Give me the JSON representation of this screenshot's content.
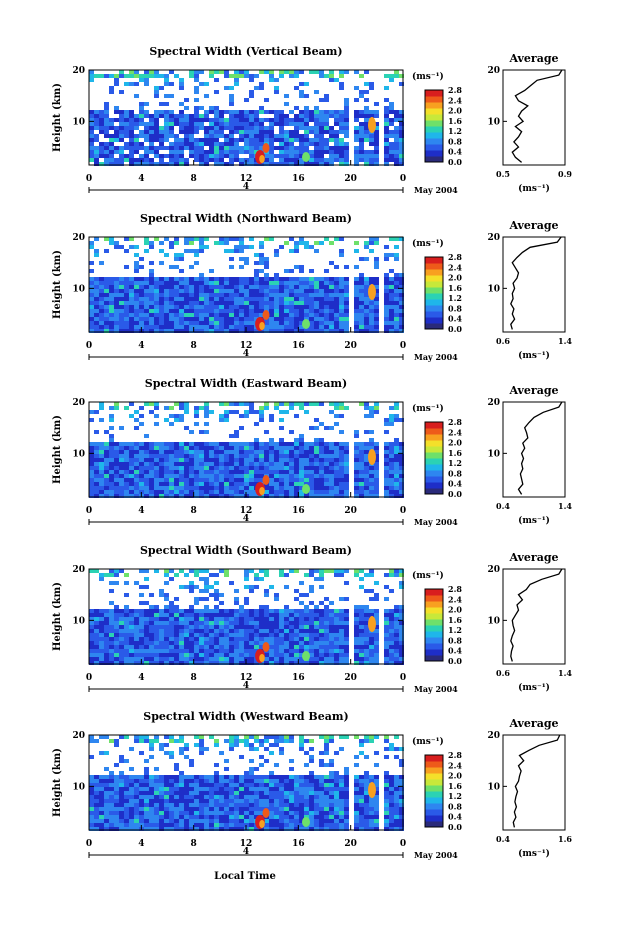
{
  "figure": {
    "xlabel": "Local Time",
    "date_label": "May 2004",
    "day_label": "4",
    "colorbar_unit": "(ms⁻¹)",
    "colorbar_ticks": [
      "0.0",
      "0.4",
      "0.8",
      "1.2",
      "1.6",
      "2.0",
      "2.4",
      "2.8"
    ],
    "colors": {
      "colormap": [
        "#2a2a7a",
        "#1e2ec8",
        "#2a5ae8",
        "#2e86f0",
        "#1fb6ea",
        "#2bd2b4",
        "#6ee06a",
        "#c8e83a",
        "#f4e02a",
        "#f8a020",
        "#ee5a1a",
        "#d81e1e"
      ],
      "accent": "#000000"
    }
  },
  "chart_data": [
    {
      "type": "heatmap",
      "title": "Spectral Width (Vertical Beam)",
      "ylabel": "Height (km)",
      "x_ticks": [
        "0",
        "4",
        "8",
        "12",
        "16",
        "20",
        "0"
      ],
      "y_ticks": [
        "10",
        "20"
      ],
      "xlim": [
        0,
        24
      ],
      "ylim": [
        1.5,
        20
      ],
      "average": {
        "title": "Average",
        "xlabel": "(ms⁻¹)",
        "x_ticks": [
          "0.5",
          "0.9"
        ],
        "xlim": [
          0.5,
          0.9
        ],
        "heights": [
          2,
          3,
          4,
          5,
          6,
          7,
          8,
          9,
          10,
          11,
          12,
          13,
          14,
          15,
          16,
          17,
          18,
          19,
          20
        ],
        "values": [
          0.62,
          0.58,
          0.56,
          0.6,
          0.57,
          0.6,
          0.62,
          0.58,
          0.63,
          0.6,
          0.62,
          0.66,
          0.6,
          0.58,
          0.64,
          0.68,
          0.72,
          0.86,
          0.88
        ]
      }
    },
    {
      "type": "heatmap",
      "title": "Spectral Width (Northward Beam)",
      "ylabel": "Height (km)",
      "x_ticks": [
        "0",
        "4",
        "8",
        "12",
        "16",
        "20",
        "0"
      ],
      "y_ticks": [
        "10",
        "20"
      ],
      "xlim": [
        0,
        24
      ],
      "ylim": [
        1.5,
        20
      ],
      "average": {
        "title": "Average",
        "xlabel": "(ms⁻¹)",
        "x_ticks": [
          "0.6",
          "1.4"
        ],
        "xlim": [
          0.6,
          1.4
        ],
        "heights": [
          2,
          3,
          4,
          5,
          6,
          7,
          8,
          9,
          10,
          11,
          12,
          13,
          14,
          15,
          16,
          17,
          18,
          19,
          20
        ],
        "values": [
          0.72,
          0.7,
          0.75,
          0.72,
          0.74,
          0.7,
          0.73,
          0.72,
          0.75,
          0.73,
          0.78,
          0.8,
          0.76,
          0.72,
          0.78,
          0.85,
          0.95,
          1.3,
          1.35
        ]
      }
    },
    {
      "type": "heatmap",
      "title": "Spectral Width (Eastward Beam)",
      "ylabel": "Height (km)",
      "x_ticks": [
        "0",
        "4",
        "8",
        "12",
        "16",
        "20",
        "0"
      ],
      "y_ticks": [
        "10",
        "20"
      ],
      "xlim": [
        0,
        24
      ],
      "ylim": [
        1.5,
        20
      ],
      "average": {
        "title": "Average",
        "xlabel": "(ms⁻¹)",
        "x_ticks": [
          "0.4",
          "1.4"
        ],
        "xlim": [
          0.4,
          1.4
        ],
        "heights": [
          2,
          3,
          4,
          5,
          6,
          7,
          8,
          9,
          10,
          11,
          12,
          13,
          14,
          15,
          16,
          17,
          18,
          19,
          20
        ],
        "values": [
          0.7,
          0.65,
          0.72,
          0.7,
          0.68,
          0.72,
          0.7,
          0.73,
          0.7,
          0.75,
          0.72,
          0.8,
          0.78,
          0.75,
          0.82,
          0.9,
          1.05,
          1.3,
          1.35
        ]
      }
    },
    {
      "type": "heatmap",
      "title": "Spectral Width (Southward Beam)",
      "ylabel": "Height (km)",
      "x_ticks": [
        "0",
        "4",
        "8",
        "12",
        "16",
        "20",
        "0"
      ],
      "y_ticks": [
        "10",
        "20"
      ],
      "xlim": [
        0,
        24
      ],
      "ylim": [
        1.5,
        20
      ],
      "average": {
        "title": "Average",
        "xlabel": "(ms⁻¹)",
        "x_ticks": [
          "0.6",
          "1.4"
        ],
        "xlim": [
          0.6,
          1.4
        ],
        "heights": [
          2,
          3,
          4,
          5,
          6,
          7,
          8,
          9,
          10,
          11,
          12,
          13,
          14,
          15,
          16,
          17,
          18,
          19,
          20
        ],
        "values": [
          0.72,
          0.7,
          0.71,
          0.73,
          0.7,
          0.72,
          0.75,
          0.73,
          0.72,
          0.76,
          0.8,
          0.78,
          0.85,
          0.8,
          0.9,
          0.95,
          1.1,
          1.32,
          1.36
        ]
      }
    },
    {
      "type": "heatmap",
      "title": "Spectral Width (Westward Beam)",
      "ylabel": "Height (km)",
      "x_ticks": [
        "0",
        "4",
        "8",
        "12",
        "16",
        "20",
        "0"
      ],
      "y_ticks": [
        "10",
        "20"
      ],
      "xlim": [
        0,
        24
      ],
      "ylim": [
        1.5,
        20
      ],
      "average": {
        "title": "Average",
        "xlabel": "(ms⁻¹)",
        "x_ticks": [
          "0.4",
          "1.6"
        ],
        "xlim": [
          0.4,
          1.6
        ],
        "heights": [
          2,
          3,
          4,
          5,
          6,
          7,
          8,
          9,
          10,
          11,
          12,
          13,
          14,
          15,
          16,
          17,
          18,
          19,
          20
        ],
        "values": [
          0.62,
          0.6,
          0.65,
          0.62,
          0.66,
          0.63,
          0.65,
          0.68,
          0.64,
          0.7,
          0.72,
          0.75,
          0.7,
          0.8,
          0.72,
          0.9,
          1.1,
          1.45,
          1.5
        ]
      }
    }
  ]
}
